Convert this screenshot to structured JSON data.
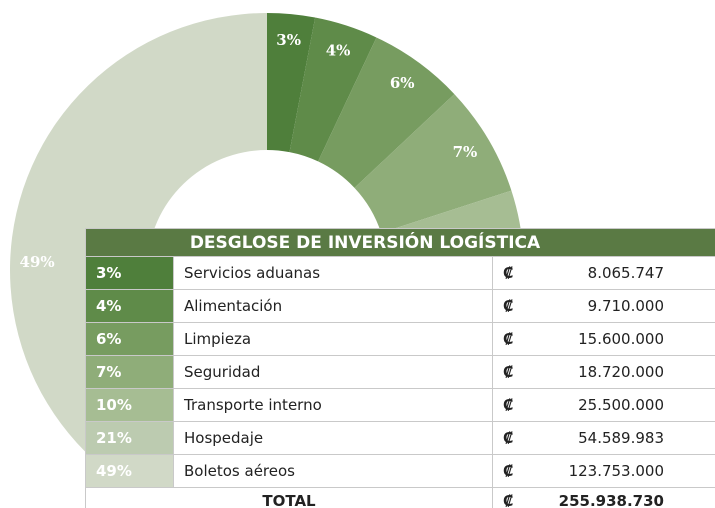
{
  "chart_data": {
    "type": "pie",
    "donut": true,
    "categories": [
      "Servicios aduanas",
      "Alimentación",
      "Limpieza",
      "Seguridad",
      "Transporte interno",
      "Hospedaje",
      "Boletos aéreos"
    ],
    "values": [
      3,
      4,
      6,
      7,
      10,
      21,
      49
    ],
    "value_labels": [
      "3%",
      "4%",
      "6%",
      "7%",
      "10%",
      "21%",
      "49%"
    ],
    "colors": [
      "#4f7f3b",
      "#5f8b49",
      "#779c60",
      "#8fad79",
      "#a6bd93",
      "#bccbb0",
      "#d1d9c7"
    ]
  },
  "table": {
    "title": "DESGLOSE DE INVERSIÓN LOGÍSTICA",
    "currency": "₡",
    "amounts": [
      "8.065.747",
      "9.710.000",
      "15.600.000",
      "18.720.000",
      "25.500.000",
      "54.589.983",
      "123.753.000"
    ],
    "total_label": "TOTAL",
    "total": "255.938.730"
  }
}
